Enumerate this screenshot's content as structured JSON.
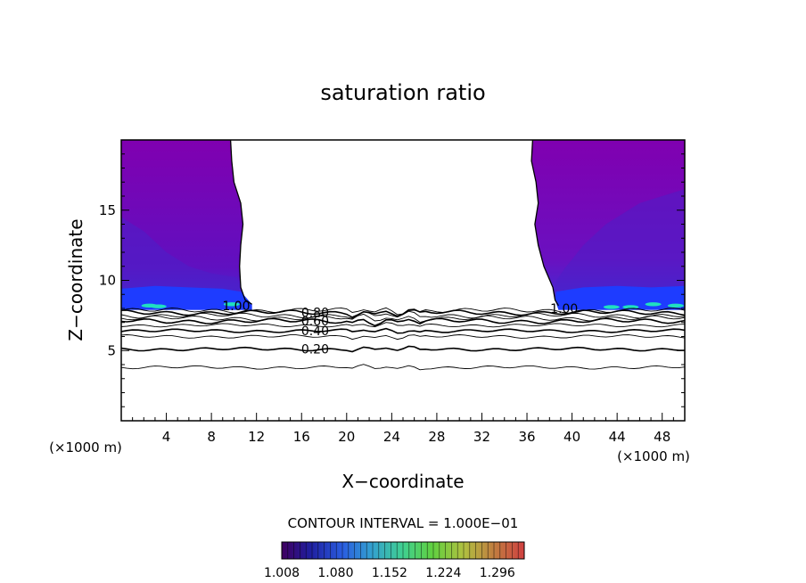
{
  "chart_data": {
    "type": "contour",
    "title": "saturation ratio",
    "xlabel": "X−coordinate",
    "ylabel": "Z−coordinate",
    "x_unit_left": "(×1000 m)",
    "x_unit_right": "(×1000 m)",
    "xlim": [
      0,
      50
    ],
    "ylim": [
      0,
      20
    ],
    "xticks": [
      4,
      8,
      12,
      16,
      20,
      24,
      28,
      32,
      36,
      40,
      44,
      48
    ],
    "yticks": [
      5,
      10,
      15
    ],
    "contour_interval_text": "CONTOUR INTERVAL = 1.000E−01",
    "contour_labels": [
      {
        "text": "0.80",
        "x": 17.2,
        "z": 7.7
      },
      {
        "text": "0.60",
        "x": 17.2,
        "z": 7.1
      },
      {
        "text": "0.40",
        "x": 17.2,
        "z": 6.4
      },
      {
        "text": "0.20",
        "x": 17.2,
        "z": 5.1
      },
      {
        "text": "1.00",
        "x": 10.2,
        "z": 8.2
      },
      {
        "text": "1.00",
        "x": 39.3,
        "z": 8.0
      }
    ],
    "contour_levels_z": [
      7.85,
      7.7,
      7.5,
      7.3,
      7.1,
      6.8,
      6.4,
      6.0,
      5.1,
      3.8
    ],
    "colorbar": {
      "labels": [
        "1.008",
        "1.080",
        "1.152",
        "1.224",
        "1.296"
      ],
      "range": [
        1.008,
        1.332
      ],
      "colors": [
        "#400060",
        "#1f1fa0",
        "#2a5de0",
        "#33a0d0",
        "#40d090",
        "#60d040",
        "#b0c040",
        "#c08040",
        "#d04040"
      ]
    },
    "fill_colors": {
      "upper": "#8000b0",
      "mid": "#6a0cb0",
      "lower": "#4a20c8",
      "band": "#1e3cff",
      "band_highlight": "#20e0c0"
    }
  }
}
